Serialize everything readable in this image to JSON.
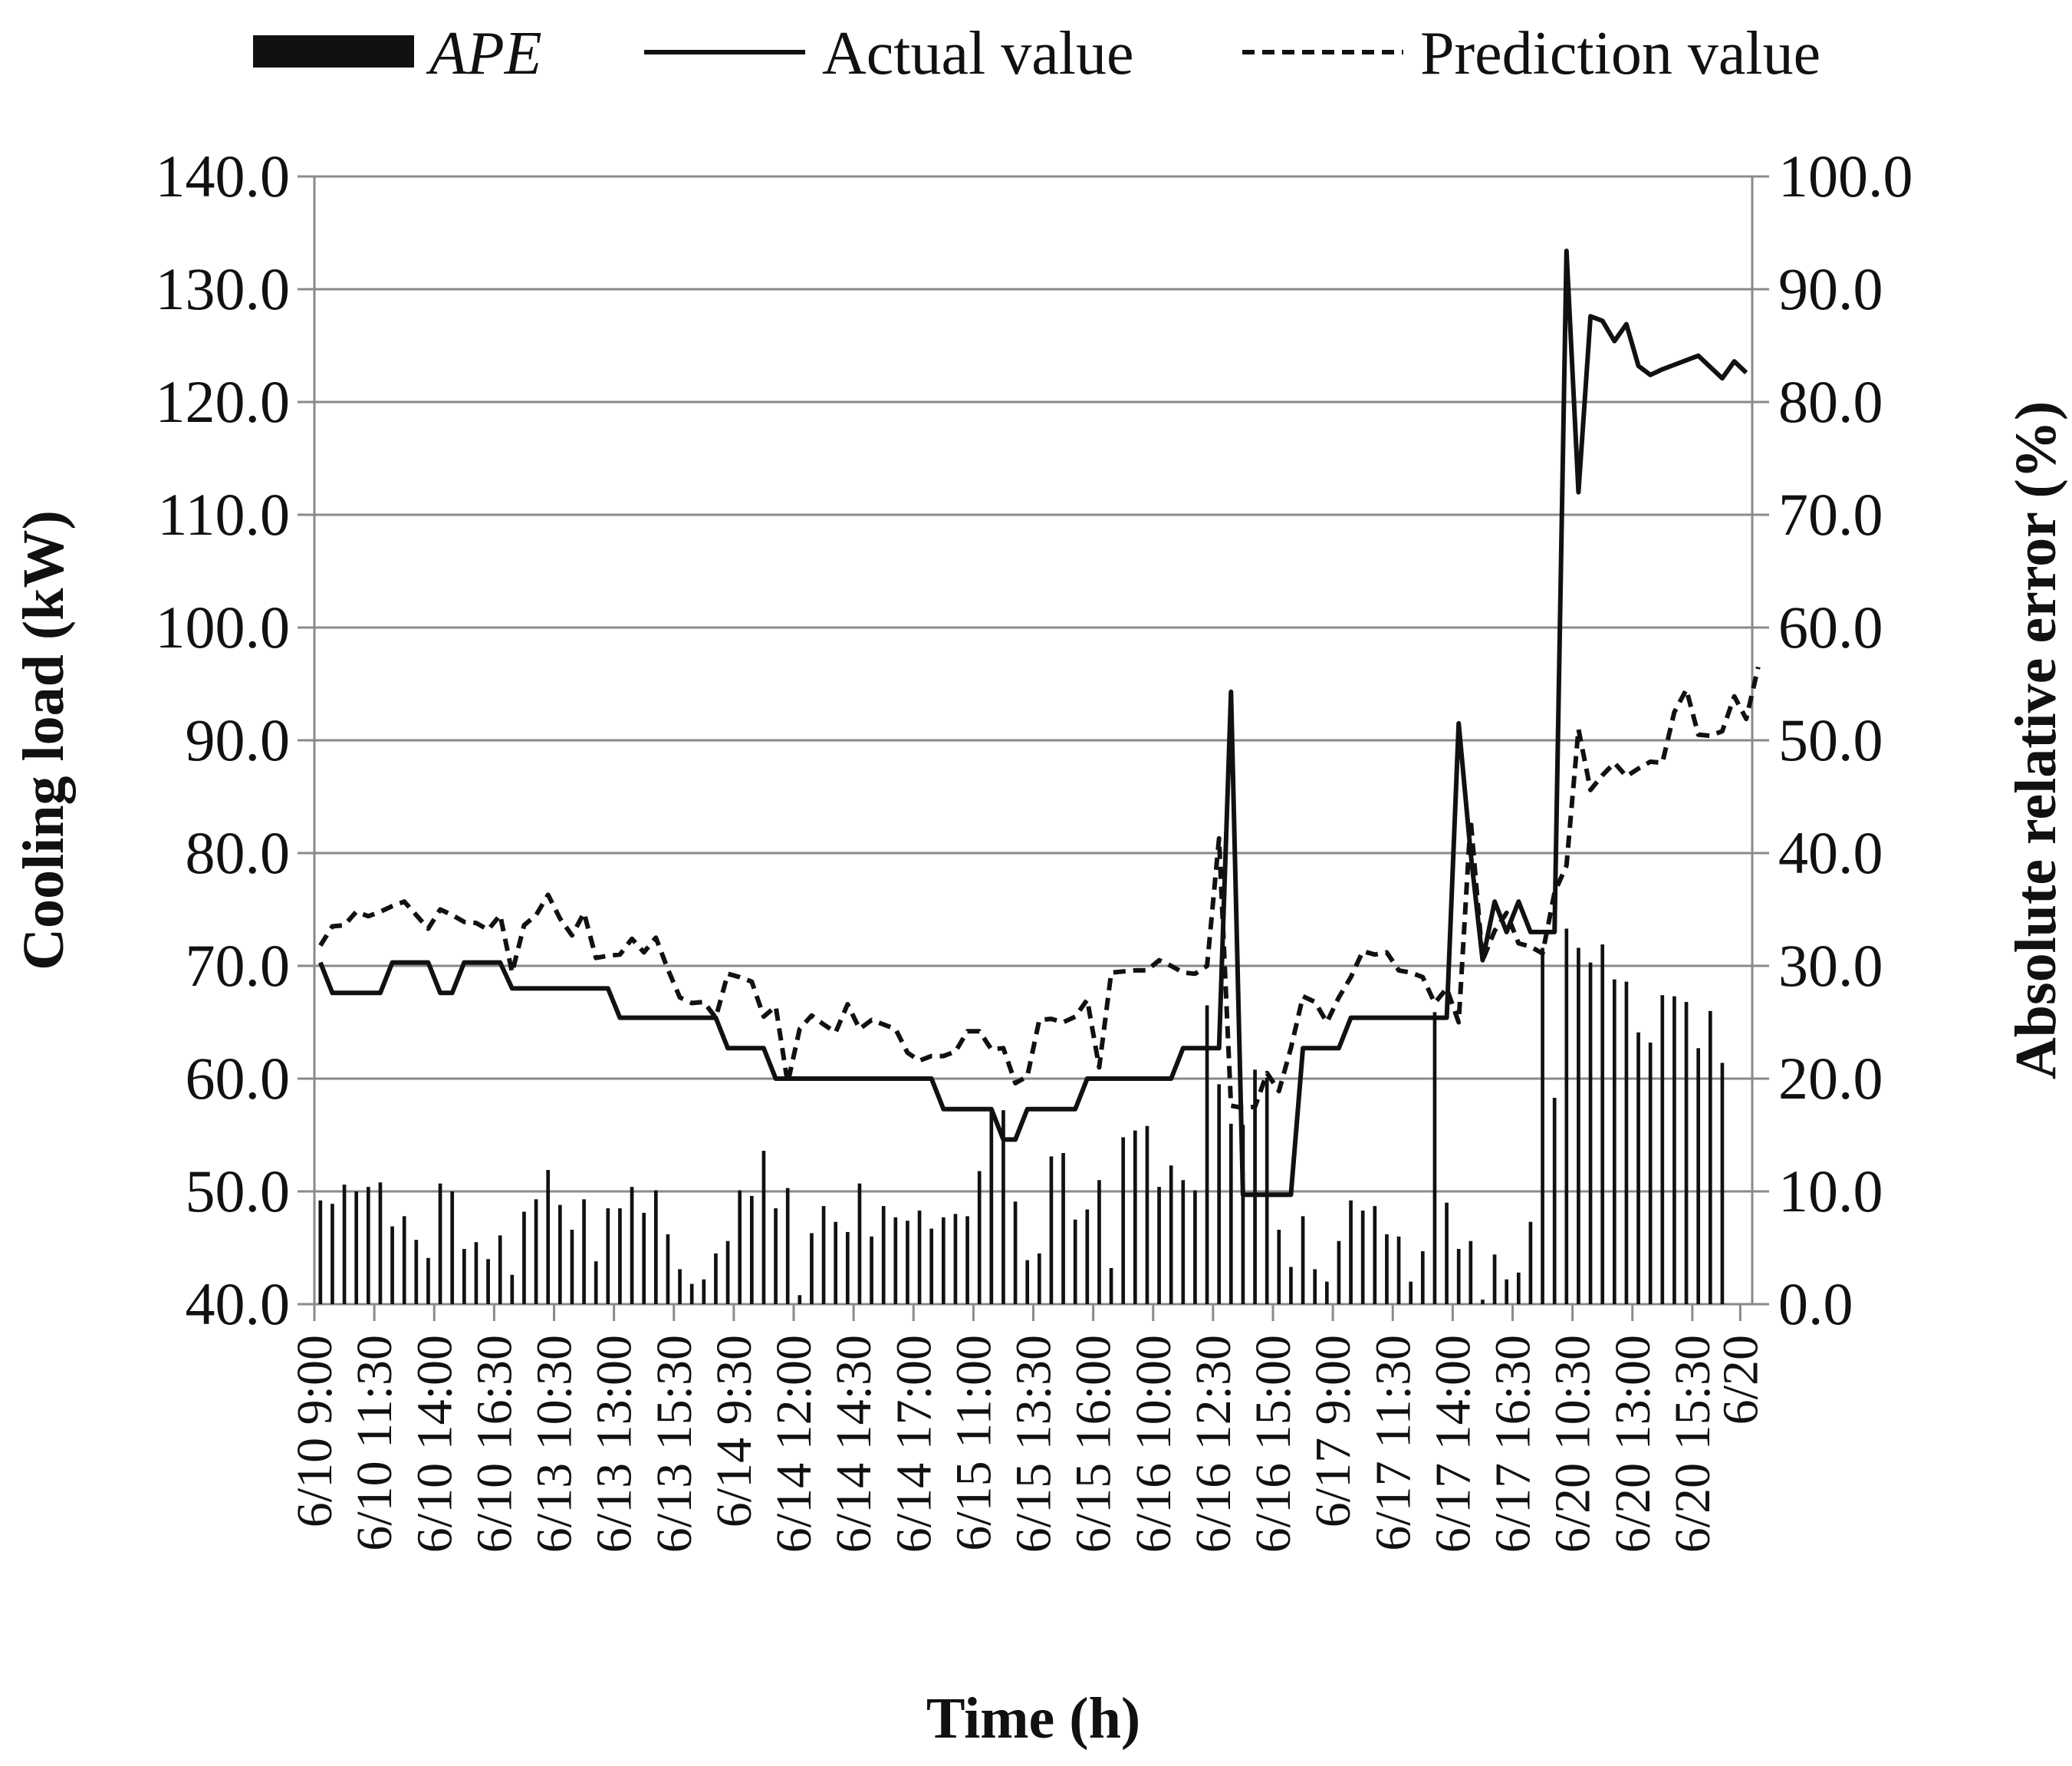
{
  "chart_data": {
    "type": "bar+line",
    "title": "",
    "legend": {
      "position": "top",
      "entries": [
        {
          "label": "APE",
          "kind": "bar",
          "color": "#111111"
        },
        {
          "label": "Actual value",
          "kind": "solid-line",
          "color": "#111111"
        },
        {
          "label": "Prediction value",
          "kind": "dashed-line",
          "color": "#111111"
        }
      ]
    },
    "xlabel": "Time (h)",
    "ylabel_left": "Cooling load (kW)",
    "ylabel_right": "Absolute relative error (%)",
    "ylim_left": [
      40,
      140
    ],
    "ylim_right": [
      0,
      100
    ],
    "yticks_left": [
      "40.0",
      "50.0",
      "60.0",
      "70.0",
      "80.0",
      "90.0",
      "100.0",
      "110.0",
      "120.0",
      "130.0",
      "140.0"
    ],
    "yticks_right": [
      "0.0",
      "10.0",
      "20.0",
      "30.0",
      "40.0",
      "50.0",
      "60.0",
      "70.0",
      "80.0",
      "90.0",
      "100.0"
    ],
    "grid": "horizontal",
    "x_tick_labels": [
      {
        "index": 0,
        "label": "6/10 9:00"
      },
      {
        "index": 5,
        "label": "6/10 11:30"
      },
      {
        "index": 10,
        "label": "6/10 14:00"
      },
      {
        "index": 15,
        "label": "6/10 16:30"
      },
      {
        "index": 20,
        "label": "6/13 10:30"
      },
      {
        "index": 25,
        "label": "6/13 13:00"
      },
      {
        "index": 30,
        "label": "6/13 15:30"
      },
      {
        "index": 35,
        "label": "6/14 9:30"
      },
      {
        "index": 40,
        "label": "6/14 12:00"
      },
      {
        "index": 45,
        "label": "6/14 14:30"
      },
      {
        "index": 50,
        "label": "6/14 17:00"
      },
      {
        "index": 55,
        "label": "6/15 11:00"
      },
      {
        "index": 60,
        "label": "6/15 13:30"
      },
      {
        "index": 65,
        "label": "6/15 16:00"
      },
      {
        "index": 70,
        "label": "6/16 10:00"
      },
      {
        "index": 75,
        "label": "6/16 12:30"
      },
      {
        "index": 80,
        "label": "6/16 15:00"
      },
      {
        "index": 85,
        "label": "6/17 9:00"
      },
      {
        "index": 90,
        "label": "6/17 11:30"
      },
      {
        "index": 95,
        "label": "6/17 14:00"
      },
      {
        "index": 100,
        "label": "6/17 16:30"
      },
      {
        "index": 105,
        "label": "6/20 10:30"
      },
      {
        "index": 110,
        "label": "6/20 13:00"
      },
      {
        "index": 115,
        "label": "6/20 15:30"
      },
      {
        "index": 119,
        "label": "6/20"
      }
    ],
    "series": [
      {
        "name": "APE",
        "axis": "right",
        "values": [
          9.2,
          8.9,
          10.6,
          10.0,
          10.4,
          10.8,
          6.9,
          7.8,
          5.7,
          4.1,
          10.7,
          10.0,
          4.9,
          5.5,
          4.0,
          6.1,
          2.6,
          8.2,
          9.3,
          11.9,
          8.8,
          6.6,
          9.3,
          3.8,
          8.5,
          8.5,
          10.4,
          8.1,
          10.1,
          6.2,
          3.1,
          1.8,
          2.2,
          4.5,
          5.6,
          10.1,
          9.6,
          13.6,
          8.5,
          10.3,
          0.8,
          6.3,
          8.7,
          7.3,
          6.4,
          10.7,
          6.0,
          8.7,
          7.7,
          7.4,
          8.3,
          6.7,
          7.7,
          8.0,
          7.8,
          11.8,
          17.1,
          17.2,
          9.1,
          3.9,
          4.5,
          13.1,
          13.4,
          7.5,
          8.4,
          11.0,
          3.2,
          14.8,
          15.4,
          15.8,
          10.4,
          12.3,
          11.0,
          10.1,
          26.5,
          19.5,
          16.0,
          15.9,
          20.8,
          20.1,
          6.6,
          3.3,
          7.8,
          3.1,
          2.0,
          5.6,
          9.2,
          8.3,
          8.7,
          6.2,
          6.0,
          2.0,
          4.7,
          25.9,
          9.0,
          4.9,
          5.6,
          0.4,
          4.4,
          2.2,
          2.8,
          7.3,
          31.6,
          18.3,
          33.3,
          31.6,
          30.3,
          31.9,
          28.8,
          28.6,
          24.1,
          23.2,
          27.4,
          27.3,
          26.8,
          22.7,
          26.0,
          21.4
        ]
      },
      {
        "name": "Actual value",
        "axis": "left",
        "values": [
          70.3,
          67.6,
          67.6,
          67.6,
          67.6,
          67.6,
          70.3,
          70.3,
          70.3,
          70.3,
          67.6,
          67.6,
          70.3,
          70.3,
          70.3,
          70.3,
          68.0,
          68.0,
          68.0,
          68.0,
          68.0,
          68.0,
          68.0,
          68.0,
          68.0,
          65.4,
          65.4,
          65.4,
          65.4,
          65.4,
          65.4,
          65.4,
          65.4,
          65.4,
          62.7,
          62.7,
          62.7,
          62.7,
          60.0,
          60.0,
          60.0,
          60.0,
          60.0,
          60.0,
          60.0,
          60.0,
          60.0,
          60.0,
          60.0,
          60.0,
          60.0,
          60.0,
          57.3,
          57.3,
          57.3,
          57.3,
          57.3,
          54.6,
          54.6,
          57.3,
          57.3,
          57.3,
          57.3,
          57.3,
          60.0,
          60.0,
          60.0,
          60.0,
          60.0,
          60.0,
          60.0,
          60.0,
          62.7,
          62.7,
          62.7,
          62.7,
          94.3,
          49.7,
          49.7,
          49.7,
          49.7,
          49.7,
          62.7,
          62.7,
          62.7,
          62.7,
          65.4,
          65.4,
          65.4,
          65.4,
          65.4,
          65.4,
          65.4,
          65.4,
          65.4,
          91.5,
          80.0,
          70.5,
          75.7,
          73.0,
          75.7,
          73.0,
          73.0,
          73.0,
          133.4,
          112.0,
          127.6,
          127.2,
          125.4,
          126.9,
          123.2,
          122.4,
          122.9,
          123.3,
          123.7,
          124.1,
          123.1,
          122.1,
          123.6,
          122.6
        ]
      },
      {
        "name": "Prediction value",
        "axis": "left",
        "values": [
          71.8,
          73.5,
          73.6,
          74.8,
          74.4,
          74.8,
          75.3,
          75.7,
          74.5,
          73.3,
          75.0,
          74.5,
          73.9,
          73.8,
          73.2,
          74.5,
          69.4,
          73.6,
          74.5,
          76.3,
          74.2,
          72.7,
          74.7,
          70.7,
          70.9,
          71.0,
          72.4,
          71.2,
          72.5,
          69.7,
          67.2,
          66.7,
          66.8,
          65.4,
          69.3,
          69.0,
          68.6,
          65.5,
          66.4,
          59.6,
          64.4,
          65.6,
          64.8,
          64.1,
          66.6,
          64.4,
          65.2,
          64.8,
          64.4,
          62.3,
          61.6,
          62.0,
          62.0,
          62.4,
          64.2,
          64.2,
          62.6,
          62.7,
          59.6,
          60.2,
          65.2,
          65.3,
          65.0,
          65.5,
          67.0,
          61.0,
          69.4,
          69.5,
          69.6,
          69.6,
          70.5,
          70.0,
          69.4,
          69.3,
          70.0,
          81.3,
          57.6,
          57.4,
          57.5,
          60.5,
          58.9,
          62.7,
          67.3,
          66.8,
          65.0,
          67.2,
          69.0,
          71.3,
          71.0,
          71.2,
          69.6,
          69.4,
          69.0,
          66.7,
          68.0,
          65.0,
          83.0,
          70.5,
          73.1,
          74.7,
          72.0,
          71.7,
          71.1,
          76.5,
          78.9,
          91.0,
          85.6,
          86.9,
          88.0,
          86.8,
          87.5,
          88.1,
          88.0,
          92.5,
          94.5,
          90.5,
          90.4,
          90.8,
          93.9,
          91.9,
          96.5
        ]
      }
    ]
  }
}
